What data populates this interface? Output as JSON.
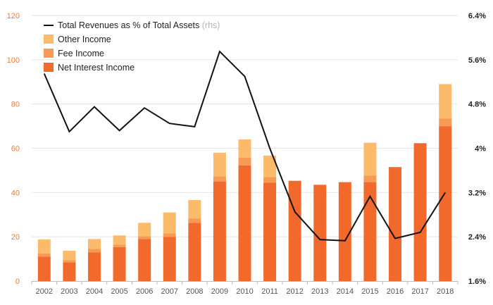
{
  "chart_data": {
    "type": "bar",
    "stacked": true,
    "categories": [
      "2002",
      "2003",
      "2004",
      "2005",
      "2006",
      "2007",
      "2008",
      "2009",
      "2010",
      "2011",
      "2012",
      "2013",
      "2014",
      "2015",
      "2016",
      "2017",
      "2018"
    ],
    "series": [
      {
        "name": "Net Interest Income",
        "color": "#f26a2b",
        "values": [
          11,
          8.5,
          13,
          15.3,
          19,
          20,
          26.3,
          45,
          52.3,
          44.5,
          45.3,
          43.5,
          44.7,
          44.7,
          51.5,
          62.3,
          70
        ]
      },
      {
        "name": "Fee Income",
        "color": "#f79a55",
        "values": [
          1.5,
          1,
          1.5,
          1.2,
          1.3,
          1.5,
          2,
          2.3,
          3.5,
          2.5,
          0,
          0,
          0,
          3,
          0,
          0,
          3.5
        ]
      },
      {
        "name": "Other Income",
        "color": "#fbbb6b",
        "values": [
          6.3,
          4.2,
          4.5,
          4.1,
          6,
          9.5,
          8.3,
          10.7,
          8.2,
          9.7,
          0,
          0,
          0,
          14.8,
          0,
          0,
          15.5
        ]
      }
    ],
    "line": {
      "name": "Total Revenues as % of Total Assets",
      "name_suffix": "(rhs)",
      "color": "#111111",
      "values": [
        5.35,
        4.3,
        4.75,
        4.32,
        4.73,
        4.45,
        4.39,
        5.75,
        5.3,
        4.0,
        2.85,
        2.35,
        2.33,
        3.13,
        2.37,
        2.48,
        3.2
      ]
    },
    "y_left": {
      "min": 0,
      "max": 120,
      "ticks": [
        "0",
        "20",
        "40",
        "60",
        "80",
        "100",
        "120"
      ]
    },
    "y_right": {
      "min": 1.6,
      "max": 6.4,
      "ticks": [
        "1.6%",
        "2.4%",
        "3.2%",
        "4%",
        "4.8%",
        "5.6%",
        "6.4%"
      ]
    },
    "grid": true,
    "legend_position": "top-left"
  },
  "colors": {
    "grid": "#e3e3e3",
    "axis": "#bdbdbd",
    "left_ticks": "#f07a3a"
  }
}
